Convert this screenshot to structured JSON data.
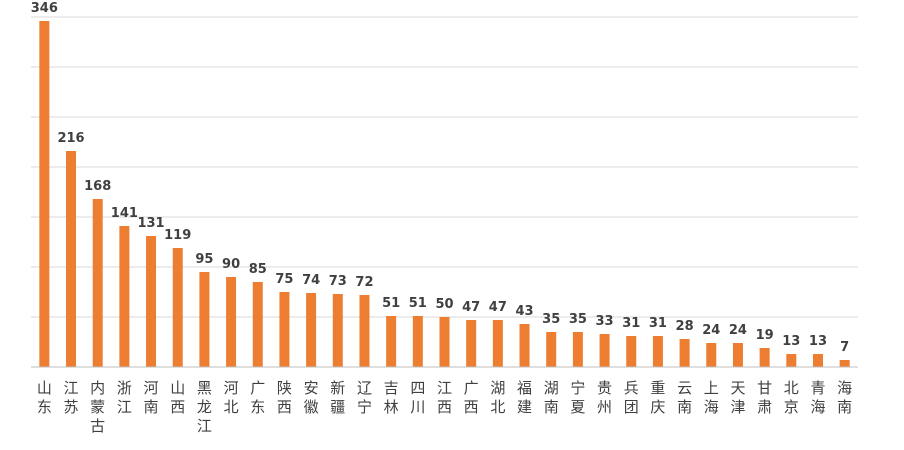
{
  "chart_data": {
    "type": "bar",
    "title": "",
    "xlabel": "",
    "ylabel": "",
    "ylim": [
      0,
      350
    ],
    "grid": true,
    "categories": [
      "山东",
      "江苏",
      "内蒙古",
      "浙江",
      "河南",
      "山西",
      "黑龙江",
      "河北",
      "广东",
      "陕西",
      "安徽",
      "新疆",
      "辽宁",
      "吉林",
      "四川",
      "江西",
      "广西",
      "湖北",
      "福建",
      "湖南",
      "宁夏",
      "贵州",
      "兵团",
      "重庆",
      "云南",
      "上海",
      "天津",
      "甘肃",
      "北京",
      "青海",
      "海南"
    ],
    "values": [
      346,
      216,
      168,
      141,
      131,
      119,
      95,
      90,
      85,
      75,
      74,
      73,
      72,
      51,
      51,
      50,
      47,
      47,
      43,
      35,
      35,
      33,
      31,
      31,
      28,
      24,
      24,
      19,
      13,
      13,
      7
    ],
    "bar_color": "#ed7d31"
  }
}
